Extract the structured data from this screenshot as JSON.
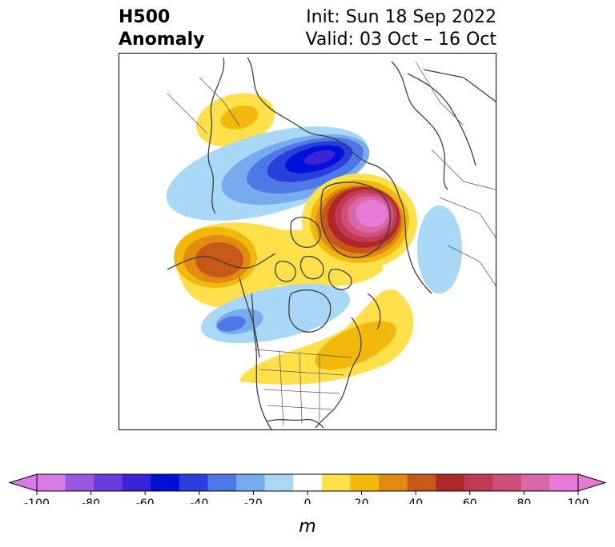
{
  "title": {
    "left_lines": [
      "H500",
      "Anomaly"
    ],
    "right_lines": [
      "Init: Sun 18 Sep 2022",
      "Valid: 03 Oct – 16 Oct"
    ]
  },
  "colorbar": {
    "unit": "m",
    "ticks": [
      "-100",
      "-80",
      "-60",
      "-40",
      "-20",
      "0",
      "20",
      "40",
      "60",
      "80",
      "100"
    ],
    "levels": [
      -100,
      -90,
      -80,
      -70,
      -60,
      -50,
      -40,
      -30,
      -20,
      -10,
      10,
      20,
      30,
      40,
      50,
      60,
      70,
      80,
      90,
      100
    ],
    "extend": "both",
    "low_extend_color": "#d77be6",
    "high_extend_color": "#e77ad7",
    "colors": [
      "#d77be6",
      "#9a57e0",
      "#6a3ada",
      "#3a22d8",
      "#0010d6",
      "#2a3edb",
      "#4e78e6",
      "#78aaee",
      "#a8d8f6",
      "#ffffff",
      "#fde04a",
      "#f2b90c",
      "#e38a10",
      "#c75918",
      "#b0272a",
      "#c13a55",
      "#cf4f7a",
      "#d968a7",
      "#e77ad7"
    ]
  },
  "map": {
    "variable": "500 hPa geopotential height anomaly",
    "projection": "polar stereographic (North America / Arctic)",
    "features": [
      {
        "name": "positive-anomaly-greenland-north-atlantic",
        "peak_m": 90
      },
      {
        "name": "negative-anomaly-siberia-arctic",
        "peak_m": -60
      },
      {
        "name": "positive-anomaly-alaska-bering",
        "peak_m": 50
      },
      {
        "name": "positive-anomaly-central-siberia",
        "peak_m": 20
      },
      {
        "name": "negative-anomaly-pacific-northwest",
        "peak_m": -30
      },
      {
        "name": "positive-anomaly-eastern-north-america",
        "peak_m": 30
      },
      {
        "name": "positive-anomaly-southern-us",
        "peak_m": 20
      }
    ]
  }
}
